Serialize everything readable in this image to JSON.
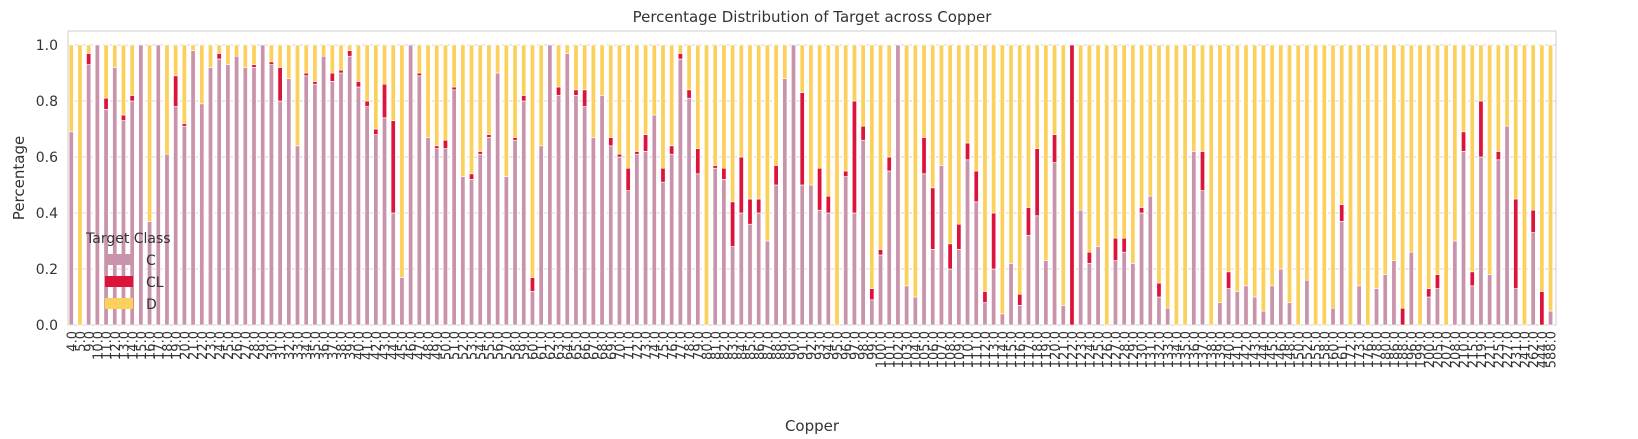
{
  "chart_data": {
    "type": "stacked_bar",
    "title": "Percentage Distribution of Target across Copper",
    "x_label": "Copper",
    "y_label": "Percentage",
    "legend_title": "Target Class",
    "legend_position": "lower left",
    "grid": true,
    "ylim": [
      0,
      1.0
    ],
    "yticks": [
      {
        "value": 0,
        "label": "0.0"
      },
      0.2,
      0.4,
      0.6,
      0.8,
      {
        "value": 1,
        "label": "1.0"
      }
    ],
    "categories": [
      "4.0",
      "5.0",
      "9.0",
      "10.0",
      "11.0",
      "12.0",
      "13.0",
      "14.0",
      "15.0",
      "16.0",
      "17.0",
      "18.0",
      "19.0",
      "20.0",
      "21.0",
      "22.0",
      "23.0",
      "24.0",
      "25.0",
      "26.0",
      "27.0",
      "28.0",
      "29.0",
      "30.0",
      "31.0",
      "32.0",
      "33.0",
      "34.0",
      "35.0",
      "36.0",
      "37.0",
      "38.0",
      "39.0",
      "40.0",
      "41.0",
      "42.0",
      "43.0",
      "44.0",
      "45.0",
      "46.0",
      "47.0",
      "48.0",
      "49.0",
      "50.0",
      "51.0",
      "52.0",
      "53.0",
      "54.0",
      "55.0",
      "56.0",
      "57.0",
      "58.0",
      "59.0",
      "60.0",
      "61.0",
      "62.0",
      "63.0",
      "64.0",
      "65.0",
      "66.0",
      "67.0",
      "68.0",
      "69.0",
      "70.0",
      "71.0",
      "72.0",
      "73.0",
      "74.0",
      "75.0",
      "76.0",
      "77.0",
      "78.0",
      "79.0",
      "80.0",
      "81.0",
      "82.0",
      "83.0",
      "84.0",
      "85.0",
      "86.0",
      "87.0",
      "88.0",
      "89.0",
      "90.0",
      "91.0",
      "92.0",
      "93.0",
      "94.0",
      "95.0",
      "96.0",
      "97.0",
      "98.0",
      "99.0",
      "100.0",
      "101.0",
      "102.0",
      "103.0",
      "104.0",
      "105.0",
      "106.0",
      "107.0",
      "108.0",
      "109.0",
      "110.0",
      "111.0",
      "112.0",
      "113.0",
      "114.0",
      "115.0",
      "116.0",
      "117.0",
      "118.0",
      "119.0",
      "120.0",
      "121.0",
      "122.0",
      "123.0",
      "124.0",
      "125.0",
      "126.0",
      "127.0",
      "128.0",
      "129.0",
      "130.0",
      "131.0",
      "132.0",
      "133.0",
      "134.0",
      "135.0",
      "136.0",
      "137.0",
      "138.0",
      "139.0",
      "140.0",
      "141.0",
      "142.0",
      "143.0",
      "144.0",
      "145.0",
      "146.0",
      "148.0",
      "150.0",
      "152.0",
      "155.0",
      "158.0",
      "160.0",
      "161.0",
      "172.0",
      "173.0",
      "176.0",
      "178.0",
      "180.0",
      "186.0",
      "188.0",
      "196.0",
      "199.0",
      "200.0",
      "205.0",
      "207.0",
      "208.0",
      "210.0",
      "215.0",
      "219.0",
      "221.0",
      "225.0",
      "227.0",
      "231.0",
      "241.0",
      "262.0",
      "444.0",
      "588.0"
    ],
    "series": [
      {
        "name": "C",
        "color": "#c994ab",
        "values": [
          0.69,
          0,
          0.93,
          1,
          0.77,
          0.92,
          0.73,
          0.8,
          1,
          0.37,
          1,
          0.61,
          0.78,
          0.71,
          0.98,
          0.79,
          0.92,
          0.95,
          0.93,
          0.96,
          0.92,
          0.92,
          1,
          0.93,
          0.8,
          0.88,
          0.64,
          0.89,
          0.86,
          0.96,
          0.87,
          0.9,
          0.96,
          0.85,
          0.78,
          0.68,
          0.74,
          0.4,
          0.17,
          1,
          0.89,
          0.67,
          0.63,
          0.63,
          0.84,
          0.53,
          0.52,
          0.61,
          0.67,
          0.9,
          0.53,
          0.66,
          0.8,
          0.12,
          0.64,
          1,
          0.82,
          0.97,
          0.82,
          0.78,
          0.67,
          0.82,
          0.64,
          0.6,
          0.48,
          0.61,
          0.62,
          0.75,
          0.51,
          0.61,
          0.95,
          0.81,
          0.54,
          0,
          0.56,
          0.52,
          0.28,
          0.4,
          0.36,
          0.4,
          0.3,
          0.5,
          0.88,
          1,
          0.5,
          0.5,
          0.41,
          0.4,
          0,
          0.53,
          0.4,
          0.66,
          0.09,
          0.25,
          0.55,
          1,
          0.14,
          0.1,
          0.54,
          0.27,
          0.57,
          0.2,
          0.27,
          0.59,
          0.44,
          0.08,
          0.2,
          0.04,
          0.22,
          0.07,
          0.32,
          0.39,
          0.23,
          0.58,
          0.07,
          0,
          0.41,
          0.22,
          0.28,
          0,
          0.23,
          0.26,
          0.22,
          0.4,
          0.46,
          0.1,
          0.06,
          0,
          0,
          0.62,
          0.48,
          0,
          0.08,
          0.13,
          0.12,
          0.14,
          0.1,
          0.05,
          0.14,
          0.2,
          0.08,
          0,
          0.16,
          0,
          0,
          0.06,
          0.37,
          0,
          0.14,
          0,
          0.13,
          0.18,
          0.23,
          0,
          0.26,
          0,
          0.1,
          0.13,
          0,
          0.3,
          0.62,
          0.14,
          0.6,
          0.18,
          0.59,
          0.71,
          0.13,
          0,
          0.33,
          0,
          0.05
        ]
      },
      {
        "name": "CL",
        "color": "#dc143c",
        "values": [
          0,
          0,
          0.04,
          0,
          0.04,
          0,
          0.02,
          0.02,
          0,
          0,
          0,
          0,
          0.11,
          0.01,
          0,
          0,
          0,
          0.02,
          0,
          0,
          0,
          0.01,
          0,
          0.01,
          0.12,
          0,
          0,
          0.01,
          0.01,
          0,
          0.03,
          0.01,
          0.02,
          0.02,
          0.02,
          0.02,
          0.12,
          0.33,
          0,
          0,
          0.01,
          0,
          0.01,
          0.03,
          0.01,
          0,
          0.02,
          0.01,
          0.01,
          0,
          0,
          0.01,
          0.02,
          0.05,
          0,
          0,
          0.03,
          0,
          0.02,
          0.06,
          0,
          0,
          0.03,
          0.01,
          0.08,
          0.01,
          0.06,
          0,
          0.05,
          0.03,
          0.02,
          0.03,
          0.09,
          0,
          0.01,
          0.04,
          0.16,
          0.2,
          0.09,
          0.05,
          0,
          0.07,
          0,
          0,
          0.33,
          0,
          0.15,
          0.06,
          0,
          0.02,
          0.4,
          0.05,
          0.04,
          0.02,
          0.05,
          0,
          0,
          0,
          0.13,
          0.22,
          0,
          0.09,
          0.09,
          0.06,
          0.11,
          0.04,
          0.2,
          0,
          0,
          0.04,
          0.1,
          0.24,
          0,
          0.1,
          0,
          1,
          0,
          0.04,
          0,
          0,
          0.08,
          0.05,
          0,
          0.02,
          0,
          0.05,
          0,
          0,
          0,
          0,
          0.14,
          0,
          0,
          0.06,
          0,
          0,
          0,
          0,
          0,
          0,
          0,
          0,
          0,
          0,
          0,
          0,
          0.06,
          0,
          0,
          0,
          0,
          0,
          0,
          0.06,
          0,
          0,
          0.03,
          0.05,
          0,
          0,
          0.07,
          0.05,
          0.2,
          0,
          0.03,
          0,
          0.32,
          0,
          0.08,
          0.12,
          0
        ]
      },
      {
        "name": "D",
        "color": "#fcd05c",
        "values": [
          0.31,
          1,
          0.03,
          0,
          0.19,
          0.08,
          0.25,
          0.18,
          0,
          0.63,
          0,
          0.39,
          0.11,
          0.28,
          0.02,
          0.21,
          0.08,
          0.03,
          0.07,
          0.04,
          0.08,
          0.07,
          0,
          0.06,
          0.08,
          0.12,
          0.36,
          0.1,
          0.13,
          0.04,
          0.1,
          0.09,
          0.02,
          0.13,
          0.2,
          0.3,
          0.14,
          0.27,
          0.83,
          0,
          0.1,
          0.33,
          0.36,
          0.34,
          0.15,
          0.47,
          0.46,
          0.38,
          0.32,
          0.1,
          0.47,
          0.33,
          0.18,
          0.83,
          0.36,
          0,
          0.15,
          0.03,
          0.16,
          0.16,
          0.33,
          0.18,
          0.33,
          0.39,
          0.44,
          0.38,
          0.32,
          0.25,
          0.44,
          0.36,
          0.03,
          0.16,
          0.37,
          1,
          0.43,
          0.44,
          0.56,
          0.4,
          0.55,
          0.55,
          0.7,
          0.43,
          0.12,
          0,
          0.17,
          0.5,
          0.44,
          0.54,
          1,
          0.45,
          0.2,
          0.29,
          0.87,
          0.73,
          0.4,
          0,
          0.86,
          0.9,
          0.33,
          0.51,
          0.43,
          0.71,
          0.64,
          0.35,
          0.45,
          0.88,
          0.6,
          0.96,
          0.78,
          0.89,
          0.58,
          0.37,
          0.77,
          0.32,
          0.93,
          0,
          0.59,
          0.74,
          0.72,
          1,
          0.69,
          0.69,
          0.78,
          0.58,
          0.54,
          0.85,
          0.94,
          1,
          1,
          0.38,
          0.38,
          1,
          0.92,
          0.81,
          0.88,
          0.86,
          0.9,
          0.95,
          0.86,
          0.8,
          0.92,
          1,
          0.84,
          1,
          1,
          0.94,
          0.57,
          1,
          0.86,
          1,
          0.87,
          0.82,
          0.77,
          0.94,
          0.74,
          1,
          0.87,
          0.82,
          1,
          0.7,
          0.31,
          0.81,
          0.2,
          0.82,
          0.38,
          0.29,
          0.55,
          1,
          0.59,
          0.88,
          0.95
        ]
      }
    ]
  }
}
